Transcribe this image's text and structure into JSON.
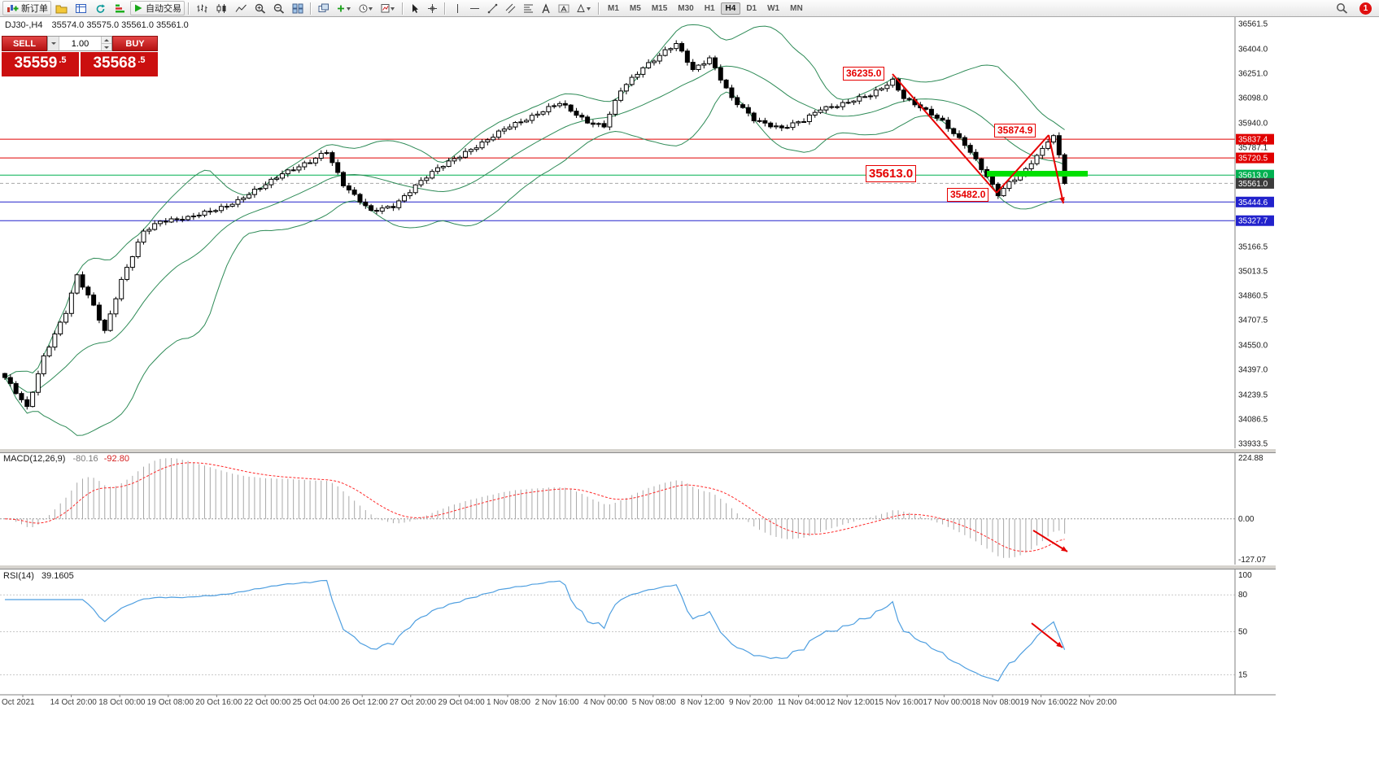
{
  "toolbar": {
    "new_order_label": "新订单",
    "autotrading_label": "自动交易",
    "timeframes": [
      "M1",
      "M5",
      "M15",
      "M30",
      "H1",
      "H4",
      "D1",
      "W1",
      "MN"
    ],
    "active_timeframe": "H4",
    "notification_count": "1"
  },
  "chart": {
    "symbol_period": "DJ30-,H4",
    "ohlc_line": "35574.0 35575.0 35561.0 35561.0",
    "trade_panel": {
      "sell_label": "SELL",
      "buy_label": "BUY",
      "volume": "1.00",
      "sell_price": "35559.5",
      "buy_price": "35568.5",
      "sell_main": "35559",
      "sell_frac": ".5",
      "buy_main": "35568",
      "buy_frac": ".5"
    },
    "levels": [
      {
        "price": 35837.4,
        "label": "35837.4",
        "color": "#e00000",
        "style": "solid"
      },
      {
        "price": 35720.5,
        "label": "35720.5",
        "color": "#e00000",
        "style": "solid"
      },
      {
        "price": 35613.0,
        "label": "35613.0",
        "color": "#00b050",
        "style": "solid"
      },
      {
        "price": 35561.0,
        "label": "35561.0",
        "color": "#3c3c3c",
        "line_color": "#a8a8a8",
        "style": "dash"
      },
      {
        "price": 35444.6,
        "label": "35444.6",
        "color": "#2222cc",
        "style": "solid"
      },
      {
        "price": 35327.7,
        "label": "35327.7",
        "color": "#2222cc",
        "style": "solid"
      }
    ],
    "axis_ticks": [
      36561.5,
      36404.0,
      36251.0,
      36098.0,
      35940.0,
      35787.1,
      35166.5,
      35013.5,
      34860.5,
      34707.5,
      34550.0,
      34397.0,
      34239.5,
      34086.5,
      33933.5
    ],
    "annotations": {
      "swing_high": "36235.0",
      "retest_high": "35874.9",
      "support_zone": "35613.0",
      "swing_low": "35482.0"
    },
    "time_labels": [
      "Oct 2021",
      "14 Oct 20:00",
      "18 Oct 00:00",
      "19 Oct 08:00",
      "20 Oct 16:00",
      "22 Oct 00:00",
      "25 Oct 04:00",
      "26 Oct 12:00",
      "27 Oct 20:00",
      "29 Oct 04:00",
      "1 Nov 08:00",
      "2 Nov 16:00",
      "4 Nov 00:00",
      "5 Nov 08:00",
      "8 Nov 12:00",
      "9 Nov 20:00",
      "11 Nov 04:00",
      "12 Nov 12:00",
      "15 Nov 16:00",
      "17 Nov 00:00",
      "18 Nov 08:00",
      "19 Nov 16:00",
      "22 Nov 20:00"
    ]
  },
  "macd_panel": {
    "name": "MACD(12,26,9)",
    "value_main": "-80.16",
    "value_signal": "-92.80",
    "axis": [
      "224.88",
      "0.00",
      "-127.07"
    ]
  },
  "rsi_panel": {
    "name": "RSI(14)",
    "value": "39.1605",
    "axis": [
      "100",
      "80",
      "50",
      "15"
    ],
    "levels": [
      80,
      50,
      15
    ]
  },
  "chart_data": {
    "type": "candlestick",
    "symbol": "DJ30-",
    "timeframe": "H4",
    "current_ohlc": {
      "open": 35574.0,
      "high": 35575.0,
      "low": 35561.0,
      "close": 35561.0
    },
    "bid": 35559.5,
    "ask": 35568.5,
    "visible_price_range": [
      33933.5,
      36561.5
    ],
    "candle_count": 192,
    "close_waypoints": [
      [
        0,
        34340
      ],
      [
        4,
        34160
      ],
      [
        7,
        34480
      ],
      [
        11,
        34750
      ],
      [
        13,
        34980
      ],
      [
        16,
        34800
      ],
      [
        18,
        34640
      ],
      [
        21,
        34950
      ],
      [
        25,
        35260
      ],
      [
        28,
        35330
      ],
      [
        33,
        35340
      ],
      [
        37,
        35390
      ],
      [
        42,
        35450
      ],
      [
        46,
        35530
      ],
      [
        50,
        35630
      ],
      [
        55,
        35690
      ],
      [
        58,
        35760
      ],
      [
        61,
        35560
      ],
      [
        66,
        35380
      ],
      [
        70,
        35420
      ],
      [
        74,
        35550
      ],
      [
        78,
        35650
      ],
      [
        83,
        35760
      ],
      [
        87,
        35830
      ],
      [
        91,
        35920
      ],
      [
        96,
        36000
      ],
      [
        100,
        36060
      ],
      [
        105,
        35950
      ],
      [
        108,
        35920
      ],
      [
        111,
        36140
      ],
      [
        115,
        36290
      ],
      [
        119,
        36390
      ],
      [
        121,
        36430
      ],
      [
        124,
        36270
      ],
      [
        127,
        36350
      ],
      [
        131,
        36090
      ],
      [
        135,
        35960
      ],
      [
        140,
        35910
      ],
      [
        144,
        35950
      ],
      [
        147,
        36030
      ],
      [
        152,
        36070
      ],
      [
        156,
        36110
      ],
      [
        160,
        36210
      ],
      [
        162,
        36100
      ],
      [
        166,
        36010
      ],
      [
        169,
        35950
      ],
      [
        173,
        35810
      ],
      [
        176,
        35650
      ],
      [
        179,
        35490
      ],
      [
        181,
        35570
      ],
      [
        184,
        35650
      ],
      [
        187,
        35780
      ],
      [
        189,
        35860
      ],
      [
        190,
        35740
      ],
      [
        191,
        35561
      ]
    ],
    "indicators": [
      {
        "name": "Bollinger Bands",
        "period": 20,
        "deviation": 2
      },
      {
        "name": "MACD",
        "fast": 12,
        "slow": 26,
        "signal": 9,
        "values": [
          -80.16,
          -92.8
        ]
      },
      {
        "name": "RSI",
        "period": 14,
        "value": 39.1605
      }
    ],
    "key_points": [
      {
        "label": "36235.0",
        "price": 36235.0,
        "type": "swing-high"
      },
      {
        "label": "35874.9",
        "price": 35874.9,
        "type": "lower-high"
      },
      {
        "label": "35613.0",
        "price": 35613.0,
        "type": "support"
      },
      {
        "label": "35482.0",
        "price": 35482.0,
        "type": "swing-low"
      }
    ]
  }
}
